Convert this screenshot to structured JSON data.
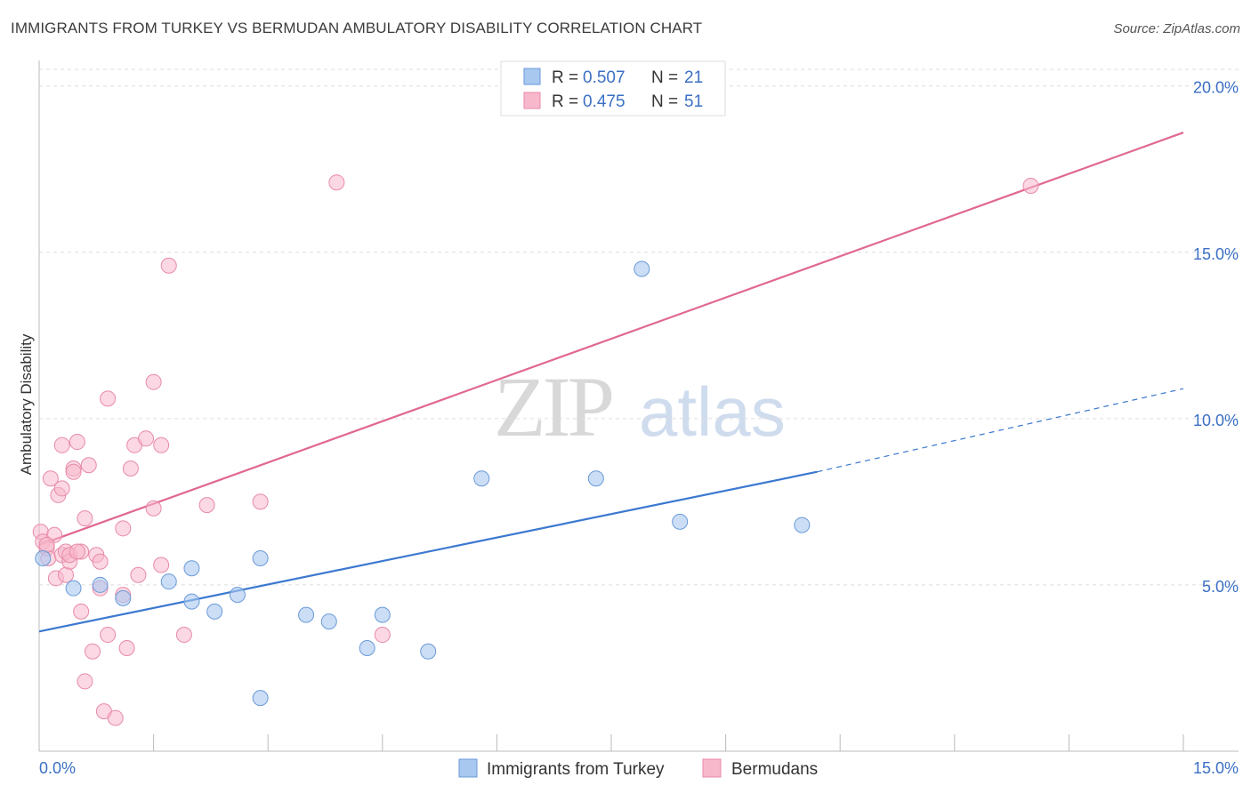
{
  "header": {
    "title": "IMMIGRANTS FROM TURKEY VS BERMUDAN AMBULATORY DISABILITY CORRELATION CHART",
    "source": "Source: ZipAtlas.com"
  },
  "watermark": {
    "zip": "ZIP",
    "atlas": "atlas"
  },
  "legend_top": {
    "rows": [
      {
        "r_label": "R = ",
        "r_value": "0.507",
        "n_label": "N = ",
        "n_value": "21",
        "color": "#a8c8f0"
      },
      {
        "r_label": "R = ",
        "r_value": "0.475",
        "n_label": "N = ",
        "n_value": "51",
        "color": "#f7b8cc"
      }
    ]
  },
  "colors": {
    "blue_fill": "#a8c8f0",
    "blue_stroke": "#6a9ad8",
    "blue_line": "#3b78d0",
    "pink_fill": "#f7b8cc",
    "pink_stroke": "#e88aa8",
    "pink_line": "#e06890",
    "tick_text": "#3b6fc4",
    "grid": "#dddddd"
  },
  "chart_data": {
    "type": "scatter",
    "title": "IMMIGRANTS FROM TURKEY VS BERMUDAN AMBULATORY DISABILITY CORRELATION CHART",
    "xlabel": "",
    "ylabel": "Ambulatory Disability",
    "xlim": [
      0,
      15
    ],
    "ylim": [
      0,
      20.5
    ],
    "x_tick_labels": [
      "0.0%",
      "15.0%"
    ],
    "y_tick_labels": [
      "5.0%",
      "10.0%",
      "15.0%",
      "20.0%"
    ],
    "y_tick_values": [
      5,
      10,
      15,
      20
    ],
    "grid": true,
    "legend_position": "top-center",
    "series": [
      {
        "name": "Immigrants from Turkey",
        "r": 0.507,
        "n": 21,
        "points": [
          [
            0.05,
            5.8
          ],
          [
            0.45,
            4.9
          ],
          [
            0.8,
            5.0
          ],
          [
            1.1,
            4.6
          ],
          [
            1.7,
            5.1
          ],
          [
            2.0,
            5.5
          ],
          [
            2.0,
            4.5
          ],
          [
            2.3,
            4.2
          ],
          [
            2.6,
            4.7
          ],
          [
            2.9,
            5.8
          ],
          [
            3.5,
            4.1
          ],
          [
            3.8,
            3.9
          ],
          [
            4.3,
            3.1
          ],
          [
            4.5,
            4.1
          ],
          [
            5.1,
            3.0
          ],
          [
            2.9,
            1.6
          ],
          [
            5.8,
            8.2
          ],
          [
            7.3,
            8.2
          ],
          [
            7.9,
            14.5
          ],
          [
            8.4,
            6.9
          ],
          [
            10.0,
            6.8
          ]
        ],
        "trend": {
          "x0": 0.0,
          "y0": 3.6,
          "x1": 10.2,
          "y1": 8.4,
          "dash_to_x": 15.0,
          "dash_to_y": 10.9
        }
      },
      {
        "name": "Bermudans",
        "r": 0.475,
        "n": 51,
        "points": [
          [
            0.02,
            6.6
          ],
          [
            0.05,
            6.3
          ],
          [
            0.1,
            6.1
          ],
          [
            0.12,
            5.8
          ],
          [
            0.15,
            8.2
          ],
          [
            0.2,
            6.5
          ],
          [
            0.22,
            5.2
          ],
          [
            0.25,
            7.7
          ],
          [
            0.3,
            7.9
          ],
          [
            0.3,
            9.2
          ],
          [
            0.3,
            5.9
          ],
          [
            0.35,
            5.3
          ],
          [
            0.35,
            6.0
          ],
          [
            0.4,
            5.7
          ],
          [
            0.4,
            5.9
          ],
          [
            0.45,
            8.5
          ],
          [
            0.45,
            8.4
          ],
          [
            0.5,
            9.3
          ],
          [
            0.55,
            6.0
          ],
          [
            0.55,
            4.2
          ],
          [
            0.6,
            7.0
          ],
          [
            0.6,
            2.1
          ],
          [
            0.65,
            8.6
          ],
          [
            0.7,
            3.0
          ],
          [
            0.75,
            5.9
          ],
          [
            0.8,
            5.7
          ],
          [
            0.8,
            4.9
          ],
          [
            0.85,
            1.2
          ],
          [
            0.9,
            10.6
          ],
          [
            0.9,
            3.5
          ],
          [
            1.0,
            1.0
          ],
          [
            1.1,
            6.7
          ],
          [
            1.1,
            4.7
          ],
          [
            1.15,
            3.1
          ],
          [
            1.2,
            8.5
          ],
          [
            1.25,
            9.2
          ],
          [
            1.3,
            5.3
          ],
          [
            1.4,
            9.4
          ],
          [
            1.5,
            7.3
          ],
          [
            1.5,
            11.1
          ],
          [
            1.6,
            9.2
          ],
          [
            1.6,
            5.6
          ],
          [
            1.7,
            14.6
          ],
          [
            1.9,
            3.5
          ],
          [
            2.2,
            7.4
          ],
          [
            2.9,
            7.5
          ],
          [
            3.9,
            17.1
          ],
          [
            4.5,
            3.5
          ],
          [
            0.1,
            6.2
          ],
          [
            0.5,
            6.0
          ],
          [
            13.0,
            17.0
          ]
        ],
        "trend": {
          "x0": 0.0,
          "y0": 6.2,
          "x1": 15.0,
          "y1": 18.6
        }
      }
    ]
  },
  "axis": {
    "x_left_label": "0.0%",
    "x_right_label": "15.0%"
  }
}
